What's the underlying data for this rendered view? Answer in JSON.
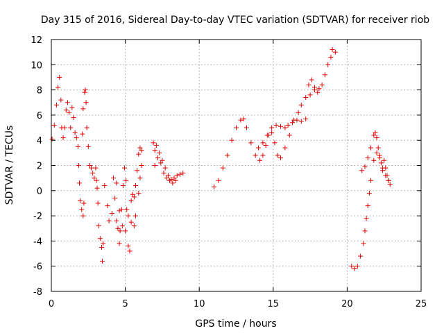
{
  "chart_data": {
    "type": "scatter",
    "title": "Day 315 of 2016, Sidereal Day-to-day VTEC variation (SDTVAR) for receiver riob",
    "xlabel": "GPS time / hours",
    "ylabel": "SDTVAR / TECUs",
    "xlim": [
      0,
      25
    ],
    "ylim": [
      -8,
      12
    ],
    "xticks": [
      "0",
      "5",
      "10",
      "15",
      "20",
      "25"
    ],
    "yticks": [
      "-8",
      "-6",
      "-4",
      "-2",
      "0",
      "2",
      "4",
      "6",
      "8",
      "10",
      "12"
    ],
    "grid": true,
    "marker": "+",
    "color": "#e00000",
    "segments": [
      [
        [
          0.05,
          4.1
        ],
        [
          0.2,
          5.2
        ],
        [
          0.35,
          6.8
        ],
        [
          0.45,
          8.2
        ],
        [
          0.55,
          9.0
        ],
        [
          0.65,
          7.2
        ],
        [
          0.7,
          5.0
        ],
        [
          0.8,
          4.2
        ],
        [
          0.9,
          5.0
        ],
        [
          1.0,
          6.4
        ],
        [
          1.1,
          7.0
        ],
        [
          1.2,
          6.2
        ],
        [
          1.3,
          5.0
        ],
        [
          1.4,
          6.6
        ],
        [
          1.5,
          5.8
        ],
        [
          1.6,
          4.6
        ],
        [
          1.7,
          4.2
        ],
        [
          1.8,
          3.5
        ],
        [
          1.85,
          2.0
        ],
        [
          1.9,
          0.6
        ],
        [
          1.95,
          -0.8
        ],
        [
          2.05,
          -1.5
        ],
        [
          2.15,
          -2.0
        ],
        [
          2.2,
          -1.0
        ]
      ],
      [
        [
          2.1,
          4.5
        ],
        [
          2.15,
          6.5
        ],
        [
          2.25,
          7.8
        ],
        [
          2.3,
          8.0
        ],
        [
          2.35,
          7.0
        ],
        [
          2.4,
          5.0
        ],
        [
          2.5,
          3.5
        ],
        [
          2.6,
          2.0
        ],
        [
          2.7,
          1.8
        ],
        [
          2.8,
          1.4
        ],
        [
          2.9,
          1.0
        ],
        [
          3.0,
          1.8
        ],
        [
          3.05,
          0.8
        ],
        [
          3.1,
          0.2
        ],
        [
          3.15,
          -1.0
        ],
        [
          3.2,
          -2.8
        ],
        [
          3.3,
          -3.8
        ],
        [
          3.4,
          -4.5
        ],
        [
          3.45,
          -5.6
        ],
        [
          3.5,
          -4.2
        ]
      ],
      [
        [
          3.6,
          0.4
        ],
        [
          3.8,
          -1.2
        ],
        [
          3.9,
          -2.4
        ],
        [
          4.1,
          -1.8
        ],
        [
          4.3,
          -0.6
        ],
        [
          4.4,
          -2.4
        ],
        [
          4.5,
          -3.0
        ],
        [
          4.6,
          -4.2
        ],
        [
          4.65,
          -3.2
        ],
        [
          4.75,
          -1.5
        ],
        [
          4.85,
          0.4
        ],
        [
          4.95,
          1.8
        ],
        [
          5.05,
          0.8
        ],
        [
          5.1,
          -1.5
        ],
        [
          5.2,
          -4.4
        ],
        [
          5.3,
          -4.8
        ],
        [
          5.4,
          -2.5
        ],
        [
          5.5,
          -0.3
        ],
        [
          5.6,
          -0.5
        ],
        [
          5.7,
          0.4
        ],
        [
          5.8,
          1.6
        ],
        [
          5.9,
          2.9
        ],
        [
          6.0,
          3.4
        ],
        [
          6.1,
          3.2
        ]
      ],
      [
        [
          4.2,
          1.0
        ],
        [
          4.4,
          0.6
        ],
        [
          4.6,
          -1.6
        ],
        [
          4.8,
          -2.8
        ],
        [
          5.0,
          -3.2
        ],
        [
          5.2,
          -2.0
        ],
        [
          5.4,
          -0.8
        ],
        [
          5.6,
          -2.8
        ],
        [
          5.7,
          -2.0
        ],
        [
          5.9,
          -0.2
        ],
        [
          6.0,
          1.0
        ],
        [
          6.1,
          2.0
        ]
      ],
      [
        [
          6.9,
          3.8
        ],
        [
          7.0,
          3.2
        ],
        [
          7.1,
          3.6
        ],
        [
          7.3,
          3.0
        ],
        [
          7.5,
          2.4
        ],
        [
          7.7,
          1.8
        ],
        [
          7.9,
          1.2
        ],
        [
          8.1,
          0.9
        ],
        [
          8.3,
          1.0
        ],
        [
          8.5,
          1.2
        ],
        [
          8.7,
          1.3
        ],
        [
          8.9,
          1.4
        ]
      ],
      [
        [
          7.0,
          2.0
        ],
        [
          7.2,
          2.6
        ],
        [
          7.4,
          2.2
        ],
        [
          7.6,
          1.4
        ],
        [
          7.8,
          1.0
        ],
        [
          8.0,
          0.8
        ],
        [
          8.2,
          0.6
        ],
        [
          8.4,
          0.8
        ]
      ],
      [
        [
          11.0,
          0.3
        ],
        [
          11.3,
          0.8
        ],
        [
          11.6,
          1.8
        ],
        [
          11.9,
          2.8
        ],
        [
          12.2,
          4.0
        ],
        [
          12.5,
          5.0
        ],
        [
          12.8,
          5.6
        ],
        [
          13.0,
          5.7
        ],
        [
          13.2,
          5.0
        ],
        [
          13.5,
          3.8
        ],
        [
          13.8,
          2.8
        ],
        [
          14.1,
          2.4
        ],
        [
          14.3,
          2.8
        ],
        [
          14.5,
          3.6
        ],
        [
          14.7,
          4.4
        ],
        [
          14.9,
          4.6
        ],
        [
          15.1,
          3.8
        ],
        [
          15.3,
          2.8
        ],
        [
          15.5,
          2.6
        ],
        [
          15.8,
          3.4
        ],
        [
          16.1,
          4.4
        ],
        [
          16.4,
          5.6
        ],
        [
          16.7,
          6.2
        ],
        [
          16.9,
          6.8
        ],
        [
          17.2,
          7.4
        ],
        [
          17.4,
          8.4
        ],
        [
          17.6,
          8.8
        ],
        [
          17.8,
          8.2
        ],
        [
          18.0,
          7.8
        ],
        [
          18.3,
          8.4
        ],
        [
          18.5,
          9.2
        ],
        [
          18.7,
          10.0
        ],
        [
          18.9,
          10.6
        ],
        [
          19.0,
          11.2
        ],
        [
          19.2,
          11.0
        ]
      ],
      [
        [
          14.0,
          3.4
        ],
        [
          14.3,
          3.8
        ],
        [
          14.6,
          4.4
        ],
        [
          14.9,
          5.0
        ],
        [
          15.2,
          5.2
        ],
        [
          15.5,
          5.1
        ],
        [
          15.8,
          5.0
        ],
        [
          16.0,
          5.2
        ],
        [
          16.3,
          5.4
        ],
        [
          16.6,
          5.6
        ],
        [
          16.9,
          5.5
        ],
        [
          17.2,
          5.7
        ],
        [
          17.5,
          7.6
        ],
        [
          17.8,
          8.0
        ],
        [
          18.1,
          8.1
        ]
      ],
      [
        [
          20.3,
          -6.0
        ],
        [
          20.5,
          -6.2
        ],
        [
          20.7,
          -6.0
        ],
        [
          20.9,
          -5.2
        ],
        [
          21.1,
          -4.2
        ],
        [
          21.2,
          -3.2
        ],
        [
          21.3,
          -2.2
        ],
        [
          21.4,
          -1.2
        ],
        [
          21.5,
          -0.2
        ],
        [
          21.6,
          0.8
        ]
      ],
      [
        [
          21.0,
          1.6
        ],
        [
          21.2,
          1.9
        ],
        [
          21.4,
          2.6
        ],
        [
          21.6,
          3.4
        ],
        [
          21.8,
          4.4
        ],
        [
          21.9,
          4.6
        ],
        [
          22.0,
          4.2
        ],
        [
          22.1,
          3.4
        ],
        [
          22.2,
          2.8
        ],
        [
          22.3,
          2.2
        ],
        [
          22.4,
          1.6
        ],
        [
          22.5,
          2.4
        ],
        [
          22.6,
          1.8
        ],
        [
          22.7,
          1.2
        ],
        [
          22.8,
          0.8
        ],
        [
          22.9,
          0.5
        ]
      ],
      [
        [
          21.8,
          2.4
        ],
        [
          22.0,
          3.0
        ],
        [
          22.2,
          2.6
        ],
        [
          22.4,
          1.8
        ],
        [
          22.6,
          1.2
        ],
        [
          22.8,
          0.8
        ]
      ]
    ]
  }
}
